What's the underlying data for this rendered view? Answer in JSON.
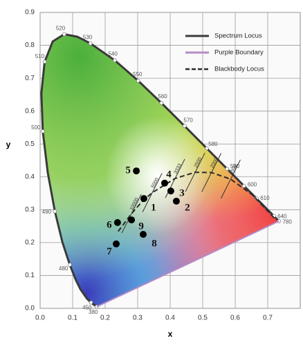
{
  "chart_data": {
    "type": "scatter",
    "x_label": "x",
    "y_label": "y",
    "xlim": [
      0,
      0.8
    ],
    "ylim": [
      0,
      0.9
    ],
    "xticks": [
      {
        "value": 0,
        "label": "0.0"
      },
      0.1,
      0.2,
      0.3,
      0.4,
      0.5,
      0.6,
      0.7
    ],
    "yticks": [
      {
        "value": 0,
        "label": "0.0"
      },
      0.1,
      0.2,
      0.3,
      0.4,
      0.5,
      0.6,
      0.7,
      0.8,
      0.9
    ],
    "grid": true,
    "legend": "top-right",
    "series": [
      {
        "name": "Spectrum Locus",
        "color": "#3a3a3a",
        "style": "solid",
        "x": [
          0.1741,
          0.1566,
          0.144,
          0.1241,
          0.1096,
          0.0913,
          0.0687,
          0.0454,
          0.0235,
          0.0082,
          0.0039,
          0.0139,
          0.0389,
          0.0743,
          0.1142,
          0.1547,
          0.2296,
          0.3016,
          0.3731,
          0.4441,
          0.5125,
          0.5752,
          0.627,
          0.6658,
          0.6915,
          0.719,
          0.7347
        ],
        "values": [
          0.005,
          0.0177,
          0.0297,
          0.0578,
          0.0868,
          0.1327,
          0.2007,
          0.295,
          0.4127,
          0.5384,
          0.6548,
          0.7502,
          0.812,
          0.8338,
          0.8262,
          0.8059,
          0.7543,
          0.6923,
          0.6245,
          0.5547,
          0.4866,
          0.4242,
          0.3725,
          0.334,
          0.3083,
          0.2809,
          0.2653
        ],
        "labels": [
          380,
          450,
          null,
          null,
          null,
          480,
          null,
          490,
          null,
          500,
          null,
          510,
          null,
          520,
          null,
          530,
          540,
          550,
          560,
          570,
          580,
          590,
          600,
          610,
          null,
          640,
          780
        ]
      },
      {
        "name": "Purple Boundary",
        "color": "#b48cc8",
        "style": "solid",
        "x": [
          0.1741,
          0.7347
        ],
        "values": [
          0.005,
          0.2653
        ]
      },
      {
        "name": "Blackbody Locus",
        "color": "#2a2a2a",
        "style": "dashed",
        "x": [
          0.24,
          0.281,
          0.313,
          0.345,
          0.415,
          0.477,
          0.527,
          0.586,
          0.653,
          0.72
        ],
        "values": [
          0.234,
          0.288,
          0.324,
          0.352,
          0.395,
          0.414,
          0.413,
          0.393,
          0.345,
          0.275
        ],
        "labels": [
          null,
          "10000",
          null,
          "5000",
          "3333",
          "2500",
          "2000",
          "1500",
          null,
          null
        ]
      },
      {
        "color": "#000000",
        "style": "points",
        "labels": [
          "1",
          "2",
          "3",
          "4",
          "5",
          "6",
          "7",
          "8",
          "9"
        ],
        "x": [
          0.319,
          0.419,
          0.402,
          0.383,
          0.296,
          0.238,
          0.234,
          0.317,
          0.281
        ],
        "values": [
          0.334,
          0.326,
          0.357,
          0.381,
          0.418,
          0.261,
          0.196,
          0.225,
          0.269
        ]
      }
    ]
  }
}
